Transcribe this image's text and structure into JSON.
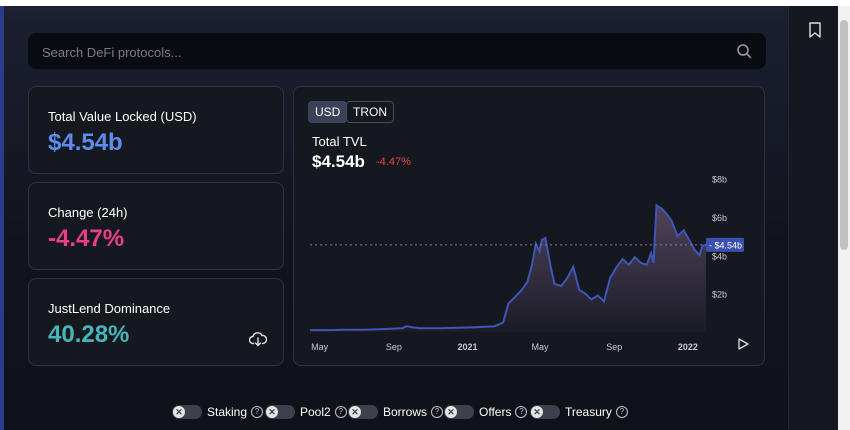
{
  "search": {
    "placeholder": "Search DeFi protocols..."
  },
  "stats": [
    {
      "label": "Total Value Locked (USD)",
      "value": "$4.54b",
      "color": "#5b8cf0"
    },
    {
      "label": "Change (24h)",
      "value": "-4.47%",
      "color": "#ea3e8a"
    },
    {
      "label": "JustLend Dominance",
      "value": "40.28%",
      "color": "#46b5ba"
    }
  ],
  "chart": {
    "tabs": [
      "USD",
      "TRON"
    ],
    "active_tab": "USD",
    "title": "Total TVL",
    "value": "$4.54b",
    "change": "-4.47%"
  },
  "chart_data": {
    "type": "area",
    "title": "Total TVL",
    "xlabel": "",
    "ylabel": "",
    "x_ticks": [
      "May",
      "Sep",
      "2021",
      "May",
      "Sep",
      "2022"
    ],
    "y_ticks": [
      "$2b",
      "$4b",
      "$6b",
      "$8b"
    ],
    "ylim": [
      0,
      8.6
    ],
    "current_value_label": "$4.54b",
    "current_value": 4.54,
    "grid": false,
    "line_color": "#3f55b8",
    "series": [
      {
        "x": [
          "2020-04-15",
          "2020-05-15",
          "2020-06-15",
          "2020-07-15",
          "2020-08-15",
          "2020-09-15",
          "2020-09-22",
          "2020-10-01",
          "2020-10-15",
          "2020-11-15",
          "2020-12-15",
          "2021-01-15",
          "2021-02-15",
          "2021-03-01",
          "2021-03-10",
          "2021-03-20",
          "2021-04-01",
          "2021-04-10",
          "2021-04-18",
          "2021-04-24",
          "2021-04-30",
          "2021-05-04",
          "2021-05-10",
          "2021-05-18",
          "2021-05-25",
          "2021-06-05",
          "2021-06-15",
          "2021-06-25",
          "2021-07-05",
          "2021-07-15",
          "2021-07-25",
          "2021-08-05",
          "2021-08-15",
          "2021-08-25",
          "2021-09-05",
          "2021-09-15",
          "2021-09-25",
          "2021-10-05",
          "2021-10-15",
          "2021-10-25",
          "2021-11-01",
          "2021-11-05",
          "2021-11-10",
          "2021-11-20",
          "2021-11-28",
          "2021-12-05",
          "2021-12-15",
          "2021-12-25",
          "2022-01-05",
          "2022-01-12",
          "2022-01-20",
          "2022-01-25",
          "2022-01-31"
        ],
        "y": [
          0.1,
          0.1,
          0.12,
          0.12,
          0.15,
          0.2,
          0.3,
          0.25,
          0.2,
          0.2,
          0.22,
          0.25,
          0.3,
          0.5,
          1.5,
          1.8,
          2.2,
          2.6,
          3.5,
          4.6,
          4.2,
          4.8,
          4.9,
          3.5,
          2.5,
          2.4,
          2.8,
          3.4,
          2.2,
          2.0,
          1.7,
          1.9,
          1.6,
          2.8,
          3.4,
          3.8,
          3.5,
          3.9,
          3.6,
          3.5,
          4.1,
          3.6,
          6.6,
          6.4,
          6.1,
          5.8,
          5.0,
          5.3,
          4.7,
          4.3,
          4.0,
          4.5,
          4.54
        ]
      }
    ]
  },
  "toggles": [
    {
      "label": "Staking"
    },
    {
      "label": "Pool2"
    },
    {
      "label": "Borrows"
    },
    {
      "label": "Offers"
    },
    {
      "label": "Treasury"
    }
  ]
}
